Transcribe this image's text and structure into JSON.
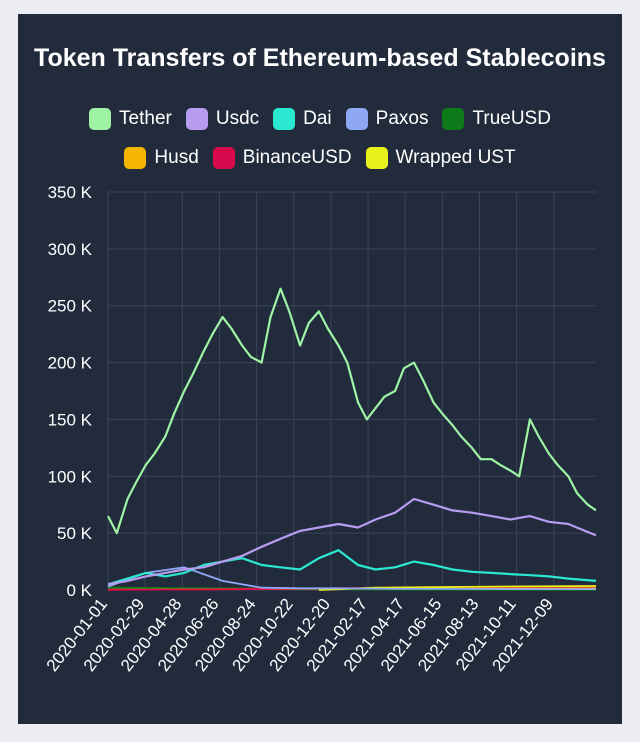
{
  "chart_data": {
    "type": "line",
    "title": "Token Transfers of Ethereum-based Stablecoins",
    "xlabel": "",
    "ylabel": "",
    "ylim": [
      0,
      350000
    ],
    "yticks": [
      "0 K",
      "50 K",
      "100 K",
      "150 K",
      "200 K",
      "250 K",
      "300 K",
      "350 K"
    ],
    "xticks": [
      "2020-01-01",
      "2020-02-29",
      "2020-04-28",
      "2020-06-26",
      "2020-08-24",
      "2020-10-22",
      "2020-12-20",
      "2021-02-17",
      "2021-04-17",
      "2021-06-15",
      "2021-08-13",
      "2021-10-11",
      "2021-12-09"
    ],
    "x_range": [
      "2020-01-01",
      "2022-02-14"
    ],
    "grid": true,
    "legend_position": "top",
    "colors": {
      "background": "#222b3c",
      "page": "#edeef3",
      "grid": "#3a4458"
    },
    "series": [
      {
        "name": "Tether",
        "color": "#9ef3a5",
        "x": [
          "2020-01-01",
          "2020-01-15",
          "2020-02-01",
          "2020-02-15",
          "2020-03-01",
          "2020-03-15",
          "2020-04-01",
          "2020-04-15",
          "2020-05-01",
          "2020-05-15",
          "2020-06-01",
          "2020-06-15",
          "2020-07-01",
          "2020-07-15",
          "2020-08-01",
          "2020-08-15",
          "2020-09-01",
          "2020-09-15",
          "2020-10-01",
          "2020-10-15",
          "2020-11-01",
          "2020-11-15",
          "2020-12-01",
          "2020-12-15",
          "2021-01-01",
          "2021-01-15",
          "2021-02-01",
          "2021-02-15",
          "2021-03-01",
          "2021-03-15",
          "2021-04-01",
          "2021-04-15",
          "2021-05-01",
          "2021-05-15",
          "2021-06-01",
          "2021-06-15",
          "2021-07-01",
          "2021-07-15",
          "2021-08-01",
          "2021-08-15",
          "2021-09-01",
          "2021-09-15",
          "2021-10-01",
          "2021-10-15",
          "2021-11-01",
          "2021-11-15",
          "2021-12-01",
          "2021-12-15",
          "2022-01-01",
          "2022-01-15",
          "2022-02-01",
          "2022-02-14"
        ],
        "values": [
          65000,
          50000,
          80000,
          95000,
          110000,
          120000,
          135000,
          155000,
          175000,
          190000,
          210000,
          225000,
          240000,
          230000,
          215000,
          205000,
          200000,
          240000,
          265000,
          245000,
          215000,
          235000,
          245000,
          230000,
          215000,
          200000,
          165000,
          150000,
          160000,
          170000,
          175000,
          195000,
          200000,
          185000,
          165000,
          155000,
          145000,
          135000,
          125000,
          115000,
          115000,
          110000,
          105000,
          100000,
          150000,
          135000,
          120000,
          110000,
          100000,
          85000,
          75000,
          70000
        ]
      },
      {
        "name": "Usdc",
        "color": "#b79cf0",
        "x": [
          "2020-01-01",
          "2020-02-01",
          "2020-03-01",
          "2020-04-01",
          "2020-05-01",
          "2020-06-01",
          "2020-07-01",
          "2020-08-01",
          "2020-09-01",
          "2020-10-01",
          "2020-11-01",
          "2020-12-01",
          "2021-01-01",
          "2021-02-01",
          "2021-03-01",
          "2021-04-01",
          "2021-05-01",
          "2021-06-01",
          "2021-07-01",
          "2021-08-01",
          "2021-09-01",
          "2021-10-01",
          "2021-11-01",
          "2021-12-01",
          "2022-01-01",
          "2022-02-14"
        ],
        "values": [
          5000,
          8000,
          12000,
          15000,
          18000,
          20000,
          25000,
          30000,
          38000,
          45000,
          52000,
          55000,
          58000,
          55000,
          62000,
          68000,
          80000,
          75000,
          70000,
          68000,
          65000,
          62000,
          65000,
          60000,
          58000,
          48000
        ]
      },
      {
        "name": "Dai",
        "color": "#2be8d2",
        "x": [
          "2020-01-01",
          "2020-02-01",
          "2020-03-01",
          "2020-04-01",
          "2020-05-01",
          "2020-06-01",
          "2020-07-01",
          "2020-08-01",
          "2020-09-01",
          "2020-10-01",
          "2020-11-01",
          "2020-12-01",
          "2021-01-01",
          "2021-02-01",
          "2021-03-01",
          "2021-04-01",
          "2021-05-01",
          "2021-06-01",
          "2021-07-01",
          "2021-08-01",
          "2021-09-01",
          "2021-10-01",
          "2021-11-01",
          "2021-12-01",
          "2022-01-01",
          "2022-02-14"
        ],
        "values": [
          5000,
          10000,
          15000,
          12000,
          15000,
          22000,
          25000,
          28000,
          22000,
          20000,
          18000,
          28000,
          35000,
          22000,
          18000,
          20000,
          25000,
          22000,
          18000,
          16000,
          15000,
          14000,
          13000,
          12000,
          10000,
          8000
        ]
      },
      {
        "name": "Paxos",
        "color": "#8ea8f5",
        "x": [
          "2020-01-01",
          "2020-03-01",
          "2020-05-01",
          "2020-07-01",
          "2020-09-01",
          "2020-11-01",
          "2021-01-01",
          "2021-04-01",
          "2021-07-01",
          "2021-10-01",
          "2022-02-14"
        ],
        "values": [
          3000,
          15000,
          20000,
          8000,
          2000,
          1500,
          1500,
          1000,
          1000,
          800,
          800
        ]
      },
      {
        "name": "TrueUSD",
        "color": "#0e7a1a",
        "x": [
          "2020-01-01",
          "2020-06-01",
          "2020-12-01",
          "2021-06-01",
          "2022-02-14"
        ],
        "values": [
          2000,
          1500,
          800,
          300,
          200
        ]
      },
      {
        "name": "Husd",
        "color": "#f5b400",
        "x": [
          "2020-01-01",
          "2020-06-01",
          "2021-01-01",
          "2021-06-01",
          "2022-02-14"
        ],
        "values": [
          300,
          600,
          1200,
          1500,
          2000
        ]
      },
      {
        "name": "BinanceUSD",
        "color": "#d8094c",
        "x": [
          "2020-01-01",
          "2020-06-01",
          "2021-01-01",
          "2021-06-01",
          "2022-02-14"
        ],
        "values": [
          200,
          400,
          1500,
          2500,
          3000
        ]
      },
      {
        "name": "Wrapped UST",
        "color": "#eaf01a",
        "x": [
          "2020-12-01",
          "2021-03-01",
          "2021-06-01",
          "2021-09-01",
          "2022-02-14"
        ],
        "values": [
          0,
          2000,
          2500,
          3000,
          3500
        ]
      }
    ]
  }
}
